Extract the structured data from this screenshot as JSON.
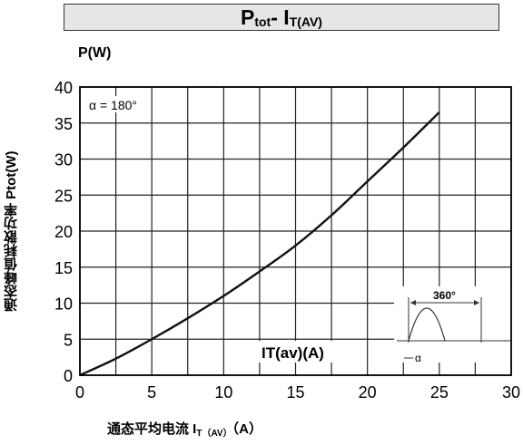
{
  "chart_data": {
    "type": "line",
    "title": {
      "main": "P",
      "main_sub": "tot",
      "sep": "- I",
      "sep_sub": "T(AV)"
    },
    "y_unit": "P(W)",
    "ylabel": "通态峰值耗散功率 Ptot(W)",
    "xlabel": {
      "main": "通态平均电流 I",
      "sub": "T（AV）",
      "tail": "（A）"
    },
    "xlim": [
      0,
      30
    ],
    "ylim": [
      0,
      40
    ],
    "x_ticks": [
      0,
      5,
      10,
      15,
      20,
      25,
      30
    ],
    "y_ticks": [
      0,
      5,
      10,
      15,
      20,
      25,
      30,
      35,
      40
    ],
    "grid": true,
    "series": [
      {
        "x": [
          0,
          2.5,
          5,
          7.5,
          10,
          12.5,
          15,
          17.5,
          20,
          22.5,
          25
        ],
        "y": [
          0,
          2.3,
          5,
          7.9,
          11,
          14.4,
          18,
          22.2,
          26.9,
          31.6,
          36.5
        ]
      }
    ],
    "annotations": {
      "alpha_label": "α = 180°",
      "curve_label": "IT(av)(A)",
      "inset_angle": "360°",
      "inset_alpha": "α"
    }
  }
}
